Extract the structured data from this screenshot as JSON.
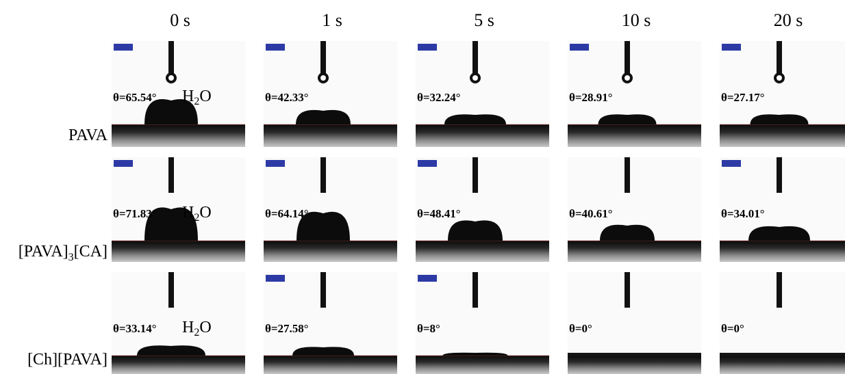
{
  "header": {
    "columns": [
      "0 s",
      "1 s",
      "5 s",
      "10 s",
      "20 s"
    ]
  },
  "annotation": {
    "parts": [
      "H",
      "2",
      "O"
    ]
  },
  "rows": [
    {
      "label_parts": [
        "PAVA"
      ],
      "angles": [
        "θ=65.54°",
        "θ=42.33°",
        "θ=32.24°",
        "θ=28.91°",
        "θ=27.17°"
      ]
    },
    {
      "label_parts": [
        "[PAVA]",
        "3",
        "[CA]"
      ],
      "angles": [
        "θ=71.83°",
        "θ=64.14°",
        "θ=48.41°",
        "θ=40.61°",
        "θ=34.01°"
      ]
    },
    {
      "label_parts": [
        "[Ch][PAVA]"
      ],
      "angles": [
        "θ=33.14°",
        "θ=27.58°",
        "θ=8°",
        "θ=0°",
        "θ=0°"
      ]
    }
  ]
}
